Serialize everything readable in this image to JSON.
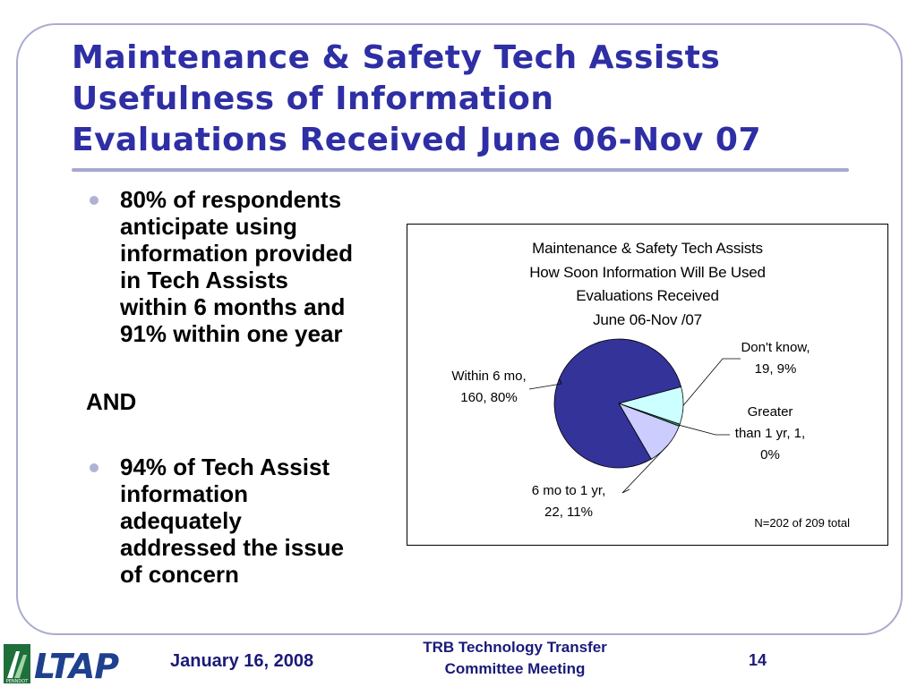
{
  "slide": {
    "title_lines": [
      "Maintenance & Safety Tech Assists",
      "Usefulness of Information",
      "Evaluations Received June 06-Nov 07"
    ],
    "bullet1_lines": [
      "80% of respondents",
      "anticipate using",
      "information provided",
      "in Tech Assists",
      "within 6 months and",
      "91% within one year"
    ],
    "and_text": "AND",
    "bullet2_lines": [
      "94% of Tech Assist",
      "information",
      "adequately",
      "addressed the issue",
      "of concern"
    ]
  },
  "chart_data": {
    "type": "pie",
    "title_lines": [
      "Maintenance & Safety Tech Assists",
      "How Soon Information Will Be Used",
      "Evaluations Received",
      "June 06-Nov /07"
    ],
    "slices": [
      {
        "name": "Within 6 mo,",
        "value": 160,
        "percent": "80%",
        "label_lines": [
          "Within 6 mo,",
          "160, 80%"
        ],
        "color": "#333399"
      },
      {
        "name": "Don't know,",
        "value": 19,
        "percent": "9%",
        "label_lines": [
          "Don't know,",
          "19, 9%"
        ],
        "color": "#ccffff"
      },
      {
        "name": "Greater than 1 yr,",
        "value": 1,
        "percent": "0%",
        "label_lines": [
          "Greater",
          "than 1 yr, 1,",
          "0%"
        ],
        "color": "#339966"
      },
      {
        "name": "6 mo to 1 yr,",
        "value": 22,
        "percent": "11%",
        "label_lines": [
          "6 mo to 1 yr,",
          "22, 11%"
        ],
        "color": "#ccccff"
      }
    ],
    "note": "N=202 of 209 total",
    "legend": "none"
  },
  "footer": {
    "logo_text": "LTAP",
    "logo_sub": "PENNDOT",
    "date": "January 16, 2008",
    "center_lines": [
      "TRB Technology Transfer",
      "Committee Meeting"
    ],
    "page": "14"
  }
}
